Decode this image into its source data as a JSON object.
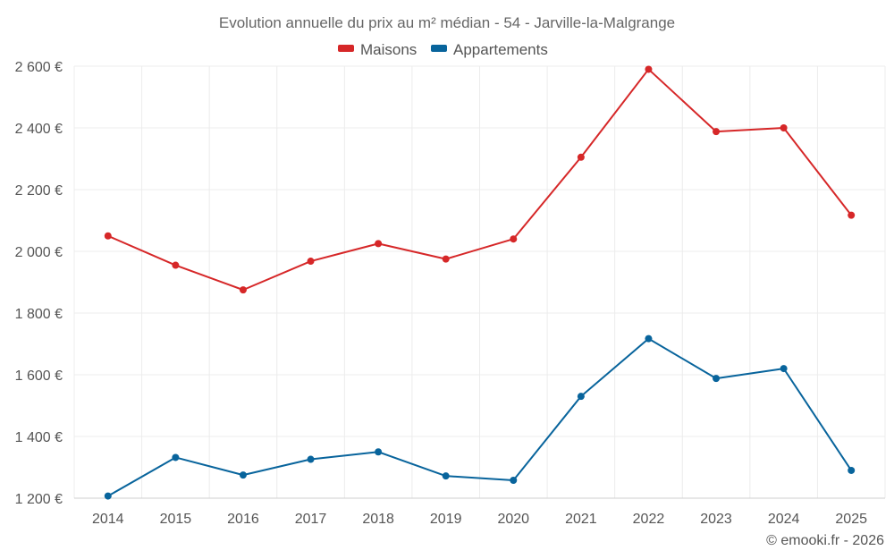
{
  "chart_data": {
    "type": "line",
    "title": "Evolution annuelle du prix au m² médian - 54 - Jarville-la-Malgrange",
    "categories": [
      "2014",
      "2015",
      "2016",
      "2017",
      "2018",
      "2019",
      "2020",
      "2021",
      "2022",
      "2023",
      "2024",
      "2025"
    ],
    "series": [
      {
        "name": "Maisons",
        "color": "#d62728",
        "values": [
          2050,
          1955,
          1875,
          1968,
          2025,
          1975,
          2040,
          2305,
          2590,
          2388,
          2400,
          2117
        ]
      },
      {
        "name": "Appartements",
        "color": "#08649c",
        "values": [
          1207,
          1332,
          1275,
          1326,
          1350,
          1272,
          1258,
          1530,
          1717,
          1588,
          1620,
          1290
        ]
      }
    ],
    "ylim": [
      1200,
      2600
    ],
    "yticks": [
      1200,
      1400,
      1600,
      1800,
      2000,
      2200,
      2400,
      2600
    ],
    "ytick_labels": [
      "1 200 €",
      "1 400 €",
      "1 600 €",
      "1 800 €",
      "2 000 €",
      "2 200 €",
      "2 400 €",
      "2 600 €"
    ],
    "legend_position": "top-center",
    "grid": true,
    "credit": "© emooki.fr - 2026"
  }
}
